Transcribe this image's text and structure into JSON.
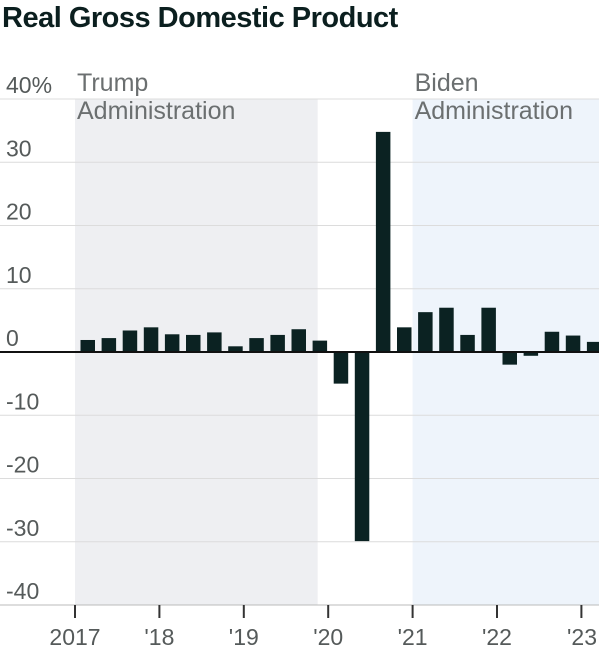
{
  "chart_data": {
    "type": "bar",
    "title": "Real Gross Domestic Product",
    "xlabel": "",
    "ylabel": "",
    "ylim": [
      -40,
      40
    ],
    "yticks": [
      {
        "value": 40,
        "label": "40%"
      },
      {
        "value": 30,
        "label": "30"
      },
      {
        "value": 20,
        "label": "20"
      },
      {
        "value": 10,
        "label": "10"
      },
      {
        "value": 0,
        "label": "0"
      },
      {
        "value": -10,
        "label": "-10"
      },
      {
        "value": -20,
        "label": "-20"
      },
      {
        "value": -30,
        "label": "-30"
      },
      {
        "value": -40,
        "label": "-40"
      }
    ],
    "xticks": [
      "2017",
      "'18",
      "'19",
      "'20",
      "'21",
      "'22",
      "'23"
    ],
    "categories": [
      "2017 Q1",
      "2017 Q2",
      "2017 Q3",
      "2017 Q4",
      "2018 Q1",
      "2018 Q2",
      "2018 Q3",
      "2018 Q4",
      "2019 Q1",
      "2019 Q2",
      "2019 Q3",
      "2019 Q4",
      "2020 Q1",
      "2020 Q2",
      "2020 Q3",
      "2020 Q4",
      "2021 Q1",
      "2021 Q2",
      "2021 Q3",
      "2021 Q4",
      "2022 Q1",
      "2022 Q2",
      "2022 Q3",
      "2022 Q4",
      "2023 Q1"
    ],
    "values": [
      1.9,
      2.2,
      3.4,
      3.9,
      2.8,
      2.7,
      3.1,
      0.9,
      2.2,
      2.7,
      3.6,
      1.8,
      -5.0,
      -29.9,
      34.8,
      3.9,
      6.3,
      7.0,
      2.7,
      7.0,
      -2.0,
      -0.6,
      3.2,
      2.6,
      1.6
    ],
    "shaded_periods": [
      {
        "label_line1": "Trump",
        "label_line2": "Administration",
        "start": 0,
        "end": 11.5,
        "color": "#eeeff2"
      },
      {
        "label_line1": "Biden",
        "label_line2": "Administration",
        "start": 16,
        "end": 25,
        "color": "#eef4fb"
      }
    ],
    "bar_color": "#0b2222",
    "grid": true,
    "legend": "none"
  }
}
